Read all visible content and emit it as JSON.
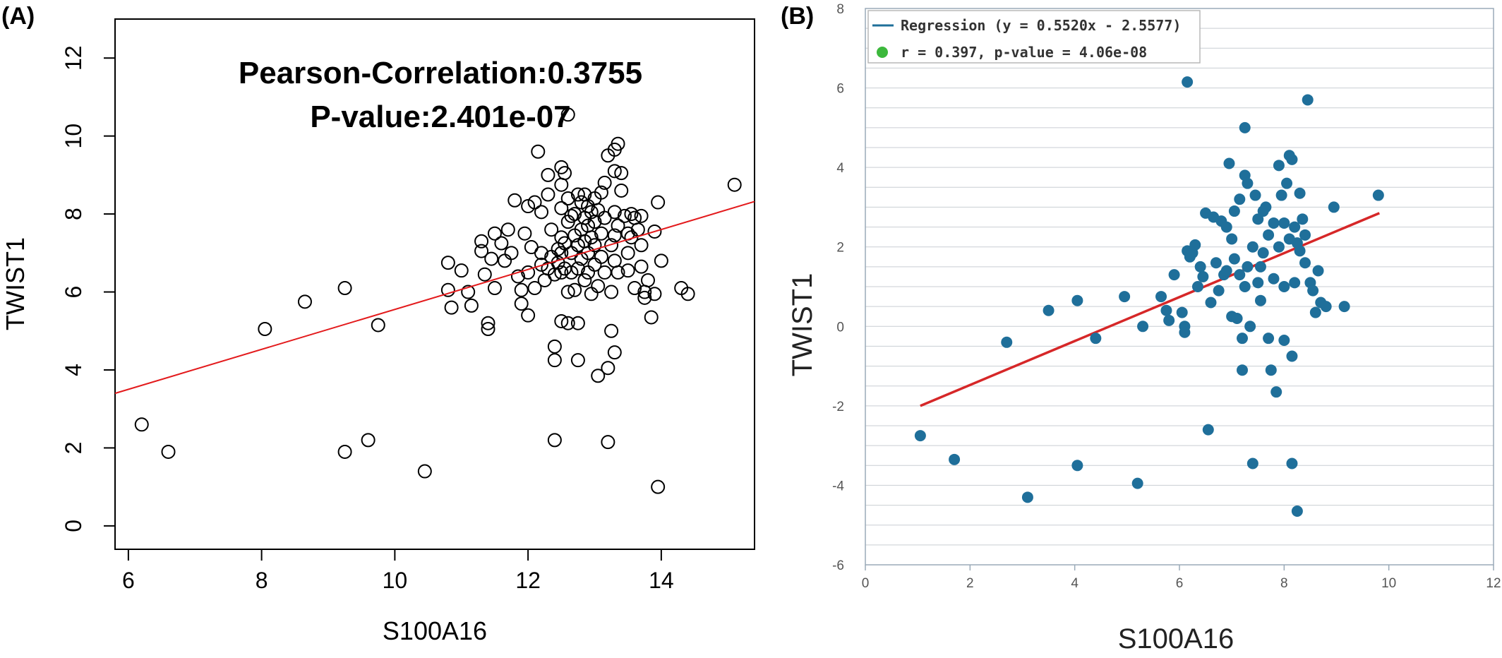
{
  "figure": {
    "panel_a_label": "(A)",
    "panel_b_label": "(B)"
  },
  "chart_data": [
    {
      "type": "scatter",
      "panel": "A",
      "xlabel": "S100A16",
      "ylabel": "TWIST1",
      "xlim": [
        5.8,
        15.4
      ],
      "ylim": [
        -0.6,
        13.0
      ],
      "xticks": [
        6,
        8,
        10,
        12,
        14
      ],
      "yticks": [
        0,
        2,
        4,
        6,
        8,
        10,
        12
      ],
      "annotations": [
        "Pearson-Correlation:0.3755",
        "P-value:2.401e-07"
      ],
      "grid": false,
      "marker": "open-circle",
      "regression": {
        "x": [
          5.8,
          15.4
        ],
        "y": [
          3.4,
          8.32
        ],
        "color": "#e31a1c"
      },
      "points": [
        [
          6.2,
          2.6
        ],
        [
          6.6,
          1.9
        ],
        [
          8.05,
          5.05
        ],
        [
          8.65,
          5.75
        ],
        [
          9.25,
          6.1
        ],
        [
          9.25,
          1.9
        ],
        [
          9.6,
          2.2
        ],
        [
          9.75,
          5.15
        ],
        [
          10.45,
          1.4
        ],
        [
          10.8,
          6.75
        ],
        [
          10.85,
          5.6
        ],
        [
          10.8,
          6.05
        ],
        [
          11.0,
          6.55
        ],
        [
          11.1,
          6.0
        ],
        [
          11.15,
          5.65
        ],
        [
          11.3,
          7.3
        ],
        [
          11.3,
          7.05
        ],
        [
          11.35,
          6.45
        ],
        [
          11.4,
          5.2
        ],
        [
          11.4,
          5.05
        ],
        [
          11.45,
          6.85
        ],
        [
          11.5,
          7.5
        ],
        [
          11.5,
          6.1
        ],
        [
          11.6,
          7.25
        ],
        [
          11.65,
          6.8
        ],
        [
          11.7,
          7.6
        ],
        [
          11.75,
          7.0
        ],
        [
          11.8,
          8.35
        ],
        [
          11.85,
          6.4
        ],
        [
          11.9,
          6.05
        ],
        [
          11.9,
          5.7
        ],
        [
          11.95,
          7.5
        ],
        [
          12.0,
          8.2
        ],
        [
          12.0,
          6.5
        ],
        [
          12.0,
          5.4
        ],
        [
          12.05,
          7.15
        ],
        [
          12.1,
          8.3
        ],
        [
          12.1,
          6.1
        ],
        [
          12.15,
          9.6
        ],
        [
          12.2,
          8.05
        ],
        [
          12.2,
          7.0
        ],
        [
          12.2,
          6.7
        ],
        [
          12.25,
          6.3
        ],
        [
          12.3,
          9.0
        ],
        [
          12.3,
          8.5
        ],
        [
          12.3,
          6.6
        ],
        [
          12.35,
          7.6
        ],
        [
          12.35,
          6.9
        ],
        [
          12.4,
          6.45
        ],
        [
          12.4,
          4.6
        ],
        [
          12.4,
          4.25
        ],
        [
          12.4,
          2.2
        ],
        [
          12.45,
          7.1
        ],
        [
          12.45,
          6.75
        ],
        [
          12.5,
          9.2
        ],
        [
          12.5,
          8.75
        ],
        [
          12.5,
          8.15
        ],
        [
          12.5,
          7.4
        ],
        [
          12.5,
          7.0
        ],
        [
          12.5,
          6.5
        ],
        [
          12.5,
          5.25
        ],
        [
          12.55,
          9.05
        ],
        [
          12.55,
          7.25
        ],
        [
          12.55,
          6.6
        ],
        [
          12.6,
          10.55
        ],
        [
          12.6,
          8.4
        ],
        [
          12.6,
          7.8
        ],
        [
          12.6,
          6.0
        ],
        [
          12.6,
          5.2
        ],
        [
          12.65,
          7.95
        ],
        [
          12.65,
          7.0
        ],
        [
          12.65,
          6.5
        ],
        [
          12.7,
          8.0
        ],
        [
          12.7,
          7.45
        ],
        [
          12.7,
          6.05
        ],
        [
          12.75,
          8.5
        ],
        [
          12.75,
          7.2
        ],
        [
          12.75,
          6.6
        ],
        [
          12.75,
          5.2
        ],
        [
          12.75,
          4.25
        ],
        [
          12.8,
          8.3
        ],
        [
          12.8,
          7.6
        ],
        [
          12.8,
          6.85
        ],
        [
          12.85,
          8.5
        ],
        [
          12.85,
          7.9
        ],
        [
          12.85,
          7.3
        ],
        [
          12.85,
          6.3
        ],
        [
          12.9,
          8.2
        ],
        [
          12.9,
          7.7
        ],
        [
          12.9,
          7.0
        ],
        [
          12.9,
          6.5
        ],
        [
          12.95,
          8.05
        ],
        [
          12.95,
          7.4
        ],
        [
          12.95,
          5.95
        ],
        [
          13.0,
          8.4
        ],
        [
          13.0,
          7.8
        ],
        [
          13.0,
          7.2
        ],
        [
          13.0,
          6.7
        ],
        [
          13.05,
          8.1
        ],
        [
          13.05,
          6.15
        ],
        [
          13.05,
          3.85
        ],
        [
          13.1,
          8.55
        ],
        [
          13.1,
          7.5
        ],
        [
          13.1,
          6.9
        ],
        [
          13.15,
          8.8
        ],
        [
          13.15,
          7.9
        ],
        [
          13.15,
          6.5
        ],
        [
          13.2,
          9.5
        ],
        [
          13.2,
          4.05
        ],
        [
          13.2,
          2.15
        ],
        [
          13.25,
          7.2
        ],
        [
          13.25,
          6.0
        ],
        [
          13.25,
          5.0
        ],
        [
          13.3,
          9.65
        ],
        [
          13.3,
          9.1
        ],
        [
          13.3,
          8.05
        ],
        [
          13.3,
          7.45
        ],
        [
          13.3,
          6.8
        ],
        [
          13.3,
          4.45
        ],
        [
          13.35,
          9.8
        ],
        [
          13.35,
          7.7
        ],
        [
          13.35,
          6.5
        ],
        [
          13.4,
          9.05
        ],
        [
          13.4,
          8.6
        ],
        [
          13.45,
          7.95
        ],
        [
          13.5,
          7.5
        ],
        [
          13.5,
          7.0
        ],
        [
          13.5,
          6.55
        ],
        [
          13.55,
          8.0
        ],
        [
          13.55,
          7.4
        ],
        [
          13.6,
          7.9
        ],
        [
          13.6,
          6.1
        ],
        [
          13.65,
          7.6
        ],
        [
          13.7,
          7.95
        ],
        [
          13.7,
          7.2
        ],
        [
          13.7,
          6.65
        ],
        [
          13.75,
          6.0
        ],
        [
          13.75,
          5.85
        ],
        [
          13.8,
          6.3
        ],
        [
          13.85,
          5.35
        ],
        [
          13.9,
          5.95
        ],
        [
          13.9,
          7.55
        ],
        [
          13.95,
          8.3
        ],
        [
          14.0,
          6.8
        ],
        [
          13.95,
          1.0
        ],
        [
          14.3,
          6.1
        ],
        [
          14.4,
          5.95
        ],
        [
          15.1,
          8.75
        ]
      ]
    },
    {
      "type": "scatter",
      "panel": "B",
      "xlabel": "S100A16",
      "ylabel": "TWIST1",
      "xlim": [
        0,
        12
      ],
      "ylim": [
        -6,
        8
      ],
      "xticks": [
        0,
        2,
        4,
        6,
        8,
        10,
        12
      ],
      "yticks": [
        -6,
        -4,
        -2,
        0,
        2,
        4,
        6,
        8
      ],
      "grid": true,
      "legend": {
        "placement": "top-left",
        "entries": [
          "Regression (y = 0.5520x - 2.5577)",
          "r = 0.397, p-value = 4.06e-08"
        ]
      },
      "marker_color": "#1f6f9a",
      "regression": {
        "x": [
          1.05,
          9.82
        ],
        "y": [
          -2.0,
          2.85
        ],
        "color": "#d62728"
      },
      "points": [
        [
          1.05,
          -2.75
        ],
        [
          1.7,
          -3.35
        ],
        [
          2.7,
          -0.4
        ],
        [
          3.1,
          -4.3
        ],
        [
          3.5,
          0.4
        ],
        [
          4.05,
          0.65
        ],
        [
          4.05,
          -3.5
        ],
        [
          4.4,
          -0.3
        ],
        [
          4.95,
          0.75
        ],
        [
          5.2,
          -3.95
        ],
        [
          5.3,
          0.0
        ],
        [
          5.65,
          0.75
        ],
        [
          5.75,
          0.4
        ],
        [
          5.8,
          0.15
        ],
        [
          5.9,
          1.3
        ],
        [
          6.05,
          0.35
        ],
        [
          6.1,
          0.0
        ],
        [
          6.1,
          -0.15
        ],
        [
          6.15,
          6.15
        ],
        [
          6.15,
          1.9
        ],
        [
          6.2,
          1.75
        ],
        [
          6.25,
          1.85
        ],
        [
          6.3,
          2.05
        ],
        [
          6.35,
          1.0
        ],
        [
          6.4,
          1.5
        ],
        [
          6.45,
          1.25
        ],
        [
          6.5,
          2.85
        ],
        [
          6.55,
          -2.6
        ],
        [
          6.6,
          0.6
        ],
        [
          6.65,
          2.75
        ],
        [
          6.7,
          1.6
        ],
        [
          6.75,
          0.9
        ],
        [
          6.8,
          2.65
        ],
        [
          6.85,
          1.3
        ],
        [
          6.9,
          2.5
        ],
        [
          6.95,
          4.1
        ],
        [
          7.0,
          0.25
        ],
        [
          7.05,
          2.9
        ],
        [
          7.05,
          1.7
        ],
        [
          7.1,
          0.2
        ],
        [
          7.15,
          3.2
        ],
        [
          7.15,
          1.3
        ],
        [
          7.2,
          -0.3
        ],
        [
          7.2,
          -1.1
        ],
        [
          7.25,
          3.8
        ],
        [
          7.25,
          5.0
        ],
        [
          7.3,
          3.6
        ],
        [
          7.3,
          1.5
        ],
        [
          7.35,
          0.0
        ],
        [
          7.4,
          -3.45
        ],
        [
          7.4,
          2.0
        ],
        [
          7.45,
          3.3
        ],
        [
          7.5,
          2.7
        ],
        [
          7.5,
          1.1
        ],
        [
          7.55,
          0.65
        ],
        [
          7.6,
          1.85
        ],
        [
          7.65,
          3.0
        ],
        [
          7.7,
          2.3
        ],
        [
          7.7,
          -0.3
        ],
        [
          7.75,
          -1.1
        ],
        [
          7.8,
          2.6
        ],
        [
          7.8,
          1.2
        ],
        [
          7.85,
          -1.65
        ],
        [
          7.9,
          4.05
        ],
        [
          7.95,
          3.3
        ],
        [
          8.0,
          2.6
        ],
        [
          8.0,
          1.0
        ],
        [
          8.0,
          -0.35
        ],
        [
          8.05,
          3.6
        ],
        [
          8.1,
          4.3
        ],
        [
          8.1,
          2.2
        ],
        [
          8.15,
          4.2
        ],
        [
          8.15,
          -0.75
        ],
        [
          8.15,
          -3.45
        ],
        [
          8.2,
          2.5
        ],
        [
          8.2,
          1.1
        ],
        [
          8.25,
          -4.65
        ],
        [
          8.3,
          3.35
        ],
        [
          8.3,
          1.9
        ],
        [
          8.35,
          2.7
        ],
        [
          8.4,
          2.3
        ],
        [
          8.45,
          5.7
        ],
        [
          8.5,
          1.1
        ],
        [
          8.55,
          0.9
        ],
        [
          8.6,
          0.35
        ],
        [
          8.65,
          1.4
        ],
        [
          8.7,
          0.6
        ],
        [
          8.8,
          0.5
        ],
        [
          8.95,
          3.0
        ],
        [
          9.15,
          0.5
        ],
        [
          9.8,
          3.3
        ],
        [
          7.0,
          2.2
        ],
        [
          7.55,
          1.5
        ],
        [
          7.25,
          1.0
        ],
        [
          7.9,
          2.0
        ],
        [
          8.4,
          1.6
        ],
        [
          6.9,
          1.4
        ],
        [
          7.6,
          2.9
        ],
        [
          8.25,
          2.1
        ]
      ]
    }
  ]
}
